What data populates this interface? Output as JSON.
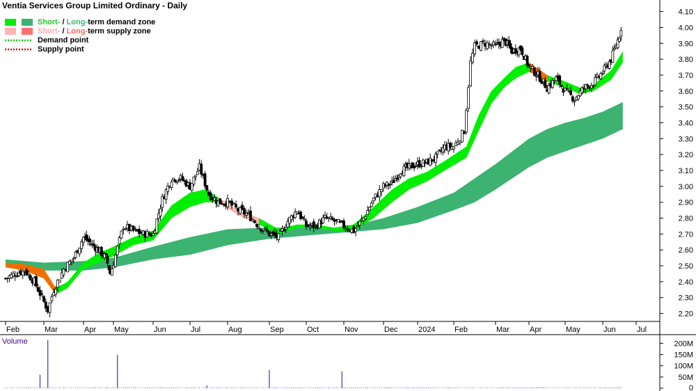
{
  "chart_data": {
    "type": "candlestick",
    "title": "Ventia Services Group Limited Ordinary - Daily",
    "legend": [
      {
        "label_parts": [
          {
            "text": "Short-",
            "color": "#22cc22"
          },
          {
            "text": " / ",
            "color": "#000000"
          },
          {
            "text": "Long-",
            "color": "#3cb371"
          },
          {
            "text": "term demand zone",
            "color": "#000000"
          }
        ],
        "swatches": [
          "#00ee00",
          "#3cb371"
        ]
      },
      {
        "label_parts": [
          {
            "text": "Short-",
            "color": "#ffaaaa"
          },
          {
            "text": " / ",
            "color": "#000000"
          },
          {
            "text": "Long-",
            "color": "#ff6666"
          },
          {
            "text": "term supply zone",
            "color": "#000000"
          }
        ],
        "swatches": [
          "#ffb3b3",
          "#ff7070"
        ]
      },
      {
        "label_parts": [
          {
            "text": "Demand point",
            "color": "#000000"
          }
        ],
        "line_color": "#00cc00"
      },
      {
        "label_parts": [
          {
            "text": "Supply point",
            "color": "#000000"
          }
        ],
        "line_color": "#dd0000"
      }
    ],
    "price_axis": {
      "ylim": [
        2.15,
        4.12
      ],
      "ticks": [
        "2.20",
        "2.30",
        "2.40",
        "2.50",
        "2.60",
        "2.70",
        "2.80",
        "2.90",
        "3.00",
        "3.10",
        "3.20",
        "3.30",
        "3.40",
        "3.50",
        "3.60",
        "3.70",
        "3.80",
        "3.90",
        "4.00",
        "4.10"
      ]
    },
    "x_axis": {
      "labels": [
        "Feb",
        "Mar",
        "Apr",
        "May",
        "Jun",
        "Jul",
        "Aug",
        "Sep",
        "Oct",
        "Nov",
        "Dec",
        "2024",
        "Feb",
        "Mar",
        "Apr",
        "May",
        "Jun",
        "Jul"
      ]
    },
    "volume_panel": {
      "title": "Volume",
      "ylim": [
        0,
        220
      ],
      "ticks": [
        "0",
        "50M",
        "100M",
        "150M",
        "200M"
      ],
      "spikes_millions": [
        {
          "month_index": 0.9,
          "value": 60
        },
        {
          "month_index": 1.1,
          "value": 215
        },
        {
          "month_index": 3.1,
          "value": 148
        },
        {
          "month_index": 5.45,
          "value": 12
        },
        {
          "month_index": 7.0,
          "value": 82
        },
        {
          "month_index": 8.95,
          "value": 75
        }
      ],
      "baseline_millions": 3
    },
    "series": [
      {
        "name": "close",
        "points": [
          [
            0,
            2.42
          ],
          [
            0.25,
            2.45
          ],
          [
            0.5,
            2.47
          ],
          [
            0.75,
            2.4
          ],
          [
            0.95,
            2.3
          ],
          [
            1.1,
            2.22
          ],
          [
            1.25,
            2.35
          ],
          [
            1.5,
            2.48
          ],
          [
            1.75,
            2.55
          ],
          [
            2,
            2.68
          ],
          [
            2.25,
            2.64
          ],
          [
            2.5,
            2.6
          ],
          [
            2.75,
            2.55
          ],
          [
            2.9,
            2.45
          ],
          [
            3,
            2.52
          ],
          [
            3.25,
            2.75
          ],
          [
            3.5,
            2.72
          ],
          [
            3.75,
            2.7
          ],
          [
            4,
            2.7
          ],
          [
            4.25,
            2.92
          ],
          [
            4.5,
            3.05
          ],
          [
            4.75,
            3.05
          ],
          [
            5,
            3.0
          ],
          [
            5.25,
            3.12
          ],
          [
            5.5,
            2.95
          ],
          [
            5.75,
            2.9
          ],
          [
            6,
            2.9
          ],
          [
            6.25,
            2.85
          ],
          [
            6.5,
            2.82
          ],
          [
            6.75,
            2.75
          ],
          [
            7,
            2.7
          ],
          [
            7.25,
            2.68
          ],
          [
            7.5,
            2.78
          ],
          [
            7.75,
            2.85
          ],
          [
            8,
            2.75
          ],
          [
            8.25,
            2.75
          ],
          [
            8.5,
            2.8
          ],
          [
            8.75,
            2.78
          ],
          [
            9,
            2.75
          ],
          [
            9.25,
            2.72
          ],
          [
            9.5,
            2.8
          ],
          [
            9.75,
            2.92
          ],
          [
            10,
            3.0
          ],
          [
            10.25,
            3.02
          ],
          [
            10.5,
            3.1
          ],
          [
            10.75,
            3.12
          ],
          [
            11,
            3.14
          ],
          [
            11.25,
            3.15
          ],
          [
            11.5,
            3.18
          ],
          [
            11.75,
            3.25
          ],
          [
            12,
            3.25
          ],
          [
            12.25,
            3.35
          ],
          [
            12.4,
            3.78
          ],
          [
            12.5,
            3.88
          ],
          [
            12.75,
            3.9
          ],
          [
            13,
            3.88
          ],
          [
            13.25,
            3.92
          ],
          [
            13.5,
            3.85
          ],
          [
            13.75,
            3.87
          ],
          [
            14,
            3.75
          ],
          [
            14.25,
            3.7
          ],
          [
            14.5,
            3.62
          ],
          [
            14.75,
            3.68
          ],
          [
            15,
            3.6
          ],
          [
            15.25,
            3.55
          ],
          [
            15.5,
            3.62
          ],
          [
            15.75,
            3.65
          ],
          [
            16,
            3.72
          ],
          [
            16.25,
            3.8
          ],
          [
            16.5,
            3.95
          ],
          [
            16.6,
            4.05
          ]
        ]
      },
      {
        "name": "short_term_zone",
        "points": [
          [
            0,
            2.52,
            2.49
          ],
          [
            0.5,
            2.51,
            2.47
          ],
          [
            1,
            2.48,
            2.42
          ],
          [
            1.3,
            2.36,
            2.32
          ],
          [
            1.6,
            2.4,
            2.36
          ],
          [
            2,
            2.52,
            2.48
          ],
          [
            2.5,
            2.58,
            2.52
          ],
          [
            3,
            2.62,
            2.56
          ],
          [
            3.5,
            2.68,
            2.63
          ],
          [
            4,
            2.72,
            2.66
          ],
          [
            4.5,
            2.88,
            2.8
          ],
          [
            5,
            2.96,
            2.87
          ],
          [
            5.4,
            2.98,
            2.9
          ],
          [
            5.75,
            2.93,
            2.9
          ],
          [
            6.25,
            2.85,
            2.82
          ],
          [
            6.75,
            2.8,
            2.76
          ],
          [
            7.25,
            2.73,
            2.7
          ],
          [
            7.75,
            2.76,
            2.74
          ],
          [
            8.25,
            2.76,
            2.74
          ],
          [
            8.75,
            2.74,
            2.72
          ],
          [
            9.25,
            2.76,
            2.72
          ],
          [
            9.75,
            2.87,
            2.8
          ],
          [
            10.25,
            2.98,
            2.9
          ],
          [
            10.75,
            3.05,
            2.98
          ],
          [
            11.25,
            3.09,
            3.03
          ],
          [
            11.75,
            3.16,
            3.1
          ],
          [
            12.3,
            3.25,
            3.18
          ],
          [
            12.6,
            3.45,
            3.35
          ],
          [
            12.9,
            3.6,
            3.52
          ],
          [
            13.25,
            3.68,
            3.62
          ],
          [
            13.6,
            3.75,
            3.68
          ],
          [
            14,
            3.78,
            3.72
          ],
          [
            14.25,
            3.74,
            3.7
          ],
          [
            14.5,
            3.7,
            3.66
          ],
          [
            15,
            3.66,
            3.62
          ],
          [
            15.4,
            3.62,
            3.58
          ],
          [
            15.75,
            3.64,
            3.6
          ],
          [
            16.25,
            3.73,
            3.67
          ],
          [
            16.6,
            3.85,
            3.78
          ]
        ]
      },
      {
        "name": "long_term_zone",
        "points": [
          [
            0,
            2.54,
            2.5
          ],
          [
            1,
            2.52,
            2.47
          ],
          [
            2,
            2.53,
            2.47
          ],
          [
            3,
            2.55,
            2.49
          ],
          [
            4,
            2.62,
            2.54
          ],
          [
            5,
            2.68,
            2.57
          ],
          [
            6,
            2.73,
            2.63
          ],
          [
            7,
            2.74,
            2.67
          ],
          [
            8,
            2.74,
            2.69
          ],
          [
            9,
            2.74,
            2.71
          ],
          [
            10,
            2.8,
            2.73
          ],
          [
            11,
            2.87,
            2.77
          ],
          [
            12,
            2.96,
            2.85
          ],
          [
            12.5,
            3.05,
            2.9
          ],
          [
            13,
            3.14,
            2.98
          ],
          [
            13.5,
            3.22,
            3.05
          ],
          [
            14,
            3.3,
            3.12
          ],
          [
            14.5,
            3.36,
            3.18
          ],
          [
            15,
            3.4,
            3.22
          ],
          [
            15.5,
            3.43,
            3.26
          ],
          [
            16,
            3.47,
            3.3
          ],
          [
            16.6,
            3.53,
            3.36
          ]
        ]
      }
    ],
    "zone_colors": {
      "short_demand": "#00ee00",
      "long_demand": "#3cb371",
      "supply": "#ff6600",
      "supply_light": "#ffb3b3"
    }
  }
}
